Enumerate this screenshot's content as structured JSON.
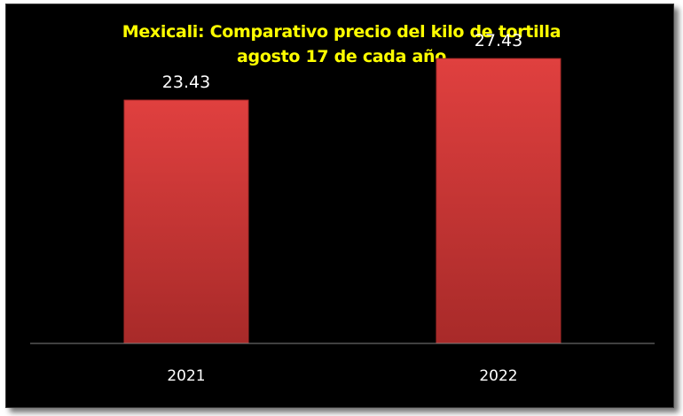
{
  "chart_data": {
    "type": "bar",
    "title_lines": [
      "Mexicali: Comparativo precio del kilo de tortilla",
      "agosto 17 de cada año"
    ],
    "xlabel": "",
    "ylabel": "",
    "categories": [
      "2021",
      "2022"
    ],
    "series": [
      {
        "values": [
          23.43,
          27.43
        ],
        "value_labels": [
          "23.43",
          "27.43"
        ]
      }
    ],
    "ylim": [
      0,
      30
    ],
    "grid": false,
    "legend": "none",
    "colors": {
      "bar": "#e0403f",
      "bar_dark": "#a82a29",
      "background": "#000000",
      "title": "#ffff00",
      "text": "#ffffff",
      "axis": "#7f7f7f"
    }
  }
}
